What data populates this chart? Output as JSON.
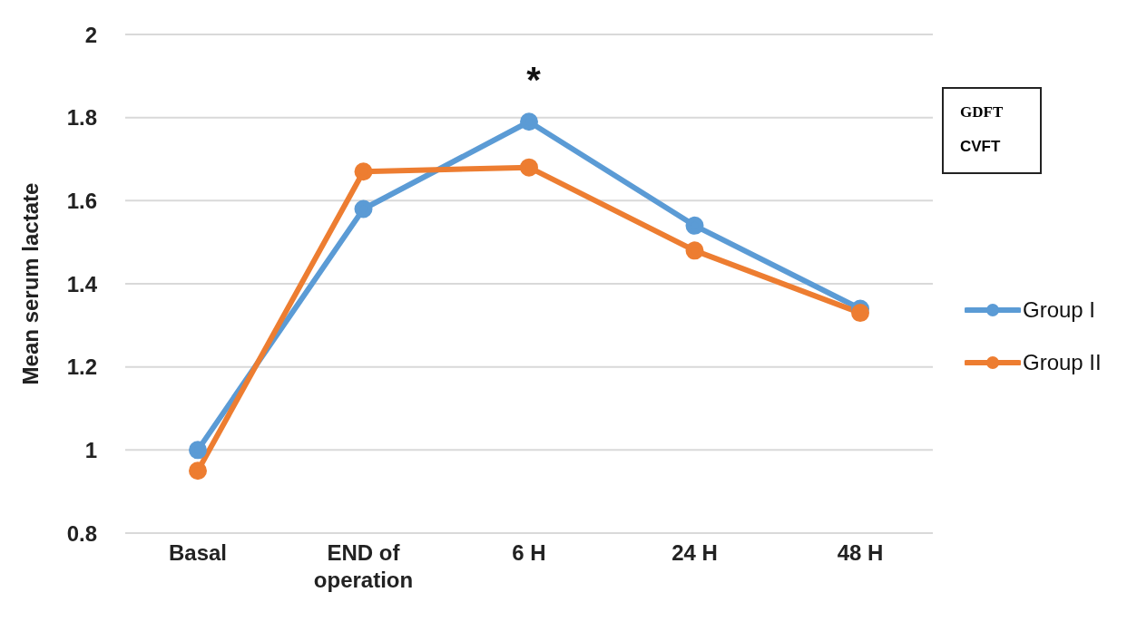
{
  "chart_data": {
    "type": "line",
    "ylabel": "Mean serum lactate",
    "categories": [
      "Basal",
      "END of operation",
      "6 H",
      "24 H",
      "48 H"
    ],
    "series": [
      {
        "name": "Group I",
        "color": "#5b9bd5",
        "values": [
          1.0,
          1.58,
          1.79,
          1.54,
          1.34
        ]
      },
      {
        "name": "Group II",
        "color": "#ed7d31",
        "values": [
          0.95,
          1.67,
          1.68,
          1.48,
          1.33
        ]
      }
    ],
    "ylim": [
      0.8,
      2
    ],
    "yticks": [
      0.8,
      1,
      1.2,
      1.4,
      1.6,
      1.8,
      2
    ],
    "grid": "y",
    "legend": "right",
    "marker": "circle",
    "line_style": "solid",
    "annotations": [
      "*",
      "GDFT",
      "CVFT"
    ]
  }
}
